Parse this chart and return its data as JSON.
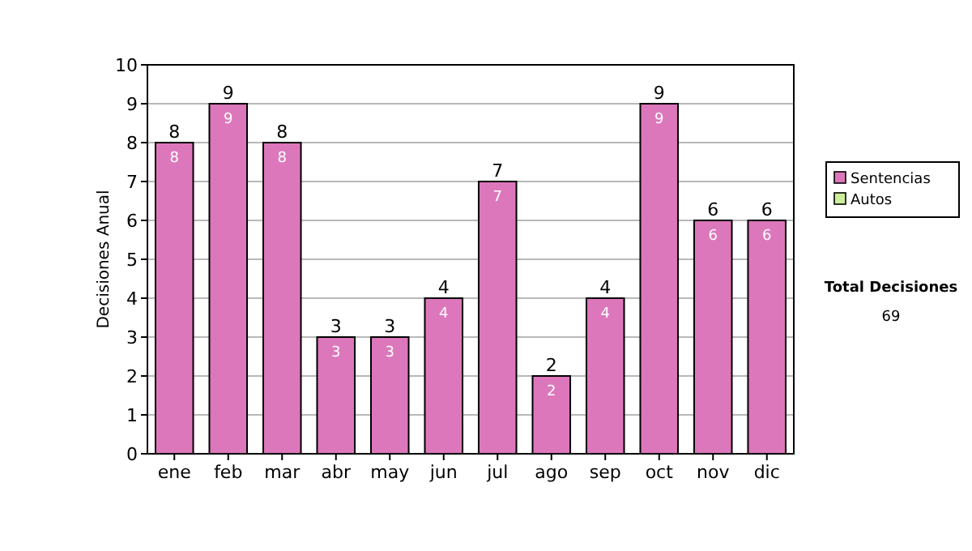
{
  "chart_data": {
    "type": "bar",
    "ylabel": "Decisiones Anual",
    "categories": [
      "ene",
      "feb",
      "mar",
      "abr",
      "may",
      "jun",
      "jul",
      "ago",
      "sep",
      "oct",
      "nov",
      "dic"
    ],
    "stacked": true,
    "series": [
      {
        "name": "Sentencias",
        "color": "#dd77bb",
        "values": [
          8,
          9,
          8,
          3,
          3,
          4,
          7,
          2,
          4,
          9,
          6,
          6
        ],
        "value_labels": [
          "8",
          "9",
          "8",
          "3",
          "3",
          "4",
          "7",
          "2",
          "4",
          "9",
          "6",
          "6"
        ]
      },
      {
        "name": "Autos",
        "color": "#ccee99",
        "values": [
          0,
          0,
          0,
          0,
          0,
          0,
          0,
          0,
          0,
          0,
          0,
          0
        ]
      }
    ],
    "totals": [
      "8",
      "9",
      "8",
      "3",
      "3",
      "4",
      "7",
      "2",
      "4",
      "9",
      "6",
      "6"
    ],
    "ylim": [
      0,
      10
    ],
    "yticks": [
      0,
      1,
      2,
      3,
      4,
      5,
      6,
      7,
      8,
      9,
      10
    ],
    "grid": "y",
    "legend": "right",
    "annotations": [
      "Total Decisiones",
      "69"
    ]
  }
}
